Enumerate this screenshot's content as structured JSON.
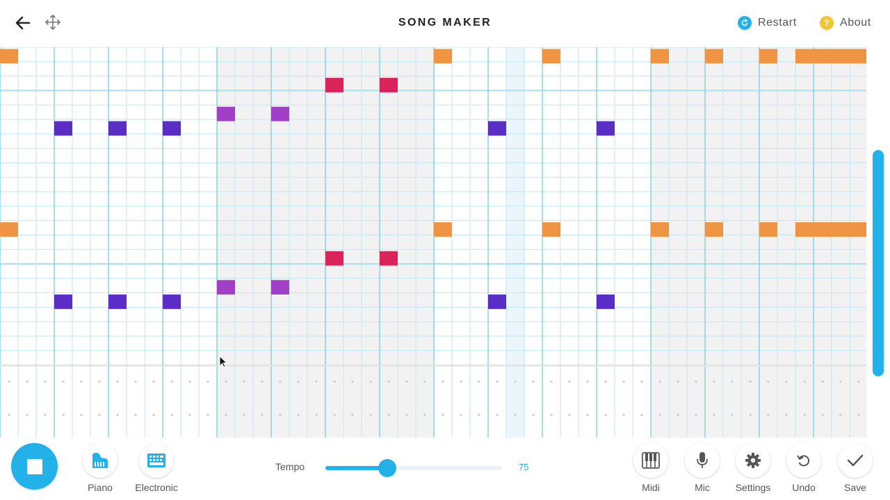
{
  "header": {
    "title": "SONG MAKER",
    "restart_label": "Restart",
    "about_label": "About",
    "about_glyph": "?"
  },
  "grid": {
    "bars": 4,
    "beats_per_bar": 4,
    "cols_per_beat": 3,
    "melody_rows": 22,
    "rows_per_octave": 12,
    "octave_line_rows": [
      3,
      15
    ],
    "shaded_bars": [
      1,
      3
    ],
    "highlight_column": 28,
    "percussion_rows": 2,
    "colors": {
      "line": "#bfe6f5",
      "beat_line": "#7fd0ee",
      "octave_line": "#a9ddf1",
      "shade": "#f2f2f2",
      "highlight": "#eaf6fc",
      "dot": "#d4d4d4"
    },
    "notes": [
      {
        "col": 0,
        "row": 0,
        "color": "#ee9443"
      },
      {
        "col": 24,
        "row": 0,
        "color": "#ee9443"
      },
      {
        "col": 30,
        "row": 0,
        "color": "#ee9443"
      },
      {
        "col": 36,
        "row": 0,
        "color": "#ee9443"
      },
      {
        "col": 39,
        "row": 0,
        "color": "#ee9443"
      },
      {
        "col": 42,
        "row": 0,
        "color": "#ee9443"
      },
      {
        "col": 44,
        "row": 0,
        "color": "#ee9443"
      },
      {
        "col": 45,
        "row": 0,
        "color": "#ee9443"
      },
      {
        "col": 46,
        "row": 0,
        "color": "#ee9443"
      },
      {
        "col": 47,
        "row": 0,
        "color": "#ee9443"
      },
      {
        "col": 18,
        "row": 2,
        "color": "#d8245a"
      },
      {
        "col": 21,
        "row": 2,
        "color": "#d8245a"
      },
      {
        "col": 12,
        "row": 4,
        "color": "#a13fc7"
      },
      {
        "col": 15,
        "row": 4,
        "color": "#a13fc7"
      },
      {
        "col": 3,
        "row": 5,
        "color": "#5a2ec6"
      },
      {
        "col": 6,
        "row": 5,
        "color": "#5a2ec6"
      },
      {
        "col": 9,
        "row": 5,
        "color": "#5a2ec6"
      },
      {
        "col": 27,
        "row": 5,
        "color": "#5a2ec6"
      },
      {
        "col": 33,
        "row": 5,
        "color": "#5a2ec6"
      },
      {
        "col": 0,
        "row": 12,
        "color": "#ee9443"
      },
      {
        "col": 24,
        "row": 12,
        "color": "#ee9443"
      },
      {
        "col": 30,
        "row": 12,
        "color": "#ee9443"
      },
      {
        "col": 36,
        "row": 12,
        "color": "#ee9443"
      },
      {
        "col": 39,
        "row": 12,
        "color": "#ee9443"
      },
      {
        "col": 42,
        "row": 12,
        "color": "#ee9443"
      },
      {
        "col": 44,
        "row": 12,
        "color": "#ee9443"
      },
      {
        "col": 45,
        "row": 12,
        "color": "#ee9443"
      },
      {
        "col": 46,
        "row": 12,
        "color": "#ee9443"
      },
      {
        "col": 47,
        "row": 12,
        "color": "#ee9443"
      },
      {
        "col": 18,
        "row": 14,
        "color": "#d8245a"
      },
      {
        "col": 21,
        "row": 14,
        "color": "#d8245a"
      },
      {
        "col": 12,
        "row": 16,
        "color": "#a13fc7"
      },
      {
        "col": 15,
        "row": 16,
        "color": "#a13fc7"
      },
      {
        "col": 3,
        "row": 17,
        "color": "#5a2ec6"
      },
      {
        "col": 6,
        "row": 17,
        "color": "#5a2ec6"
      },
      {
        "col": 9,
        "row": 17,
        "color": "#5a2ec6"
      },
      {
        "col": 27,
        "row": 17,
        "color": "#5a2ec6"
      },
      {
        "col": 33,
        "row": 17,
        "color": "#5a2ec6"
      }
    ]
  },
  "toolbar": {
    "instrument_1": "Piano",
    "instrument_2": "Electronic",
    "tempo_label": "Tempo",
    "tempo_value": "75",
    "tempo_fraction": 0.35,
    "midi_label": "Midi",
    "mic_label": "Mic",
    "settings_label": "Settings",
    "undo_label": "Undo",
    "save_label": "Save"
  },
  "theme": {
    "accent": "#23b1ea",
    "restart_icon_color": "#23b1ea",
    "about_icon_color": "#f3c534"
  }
}
